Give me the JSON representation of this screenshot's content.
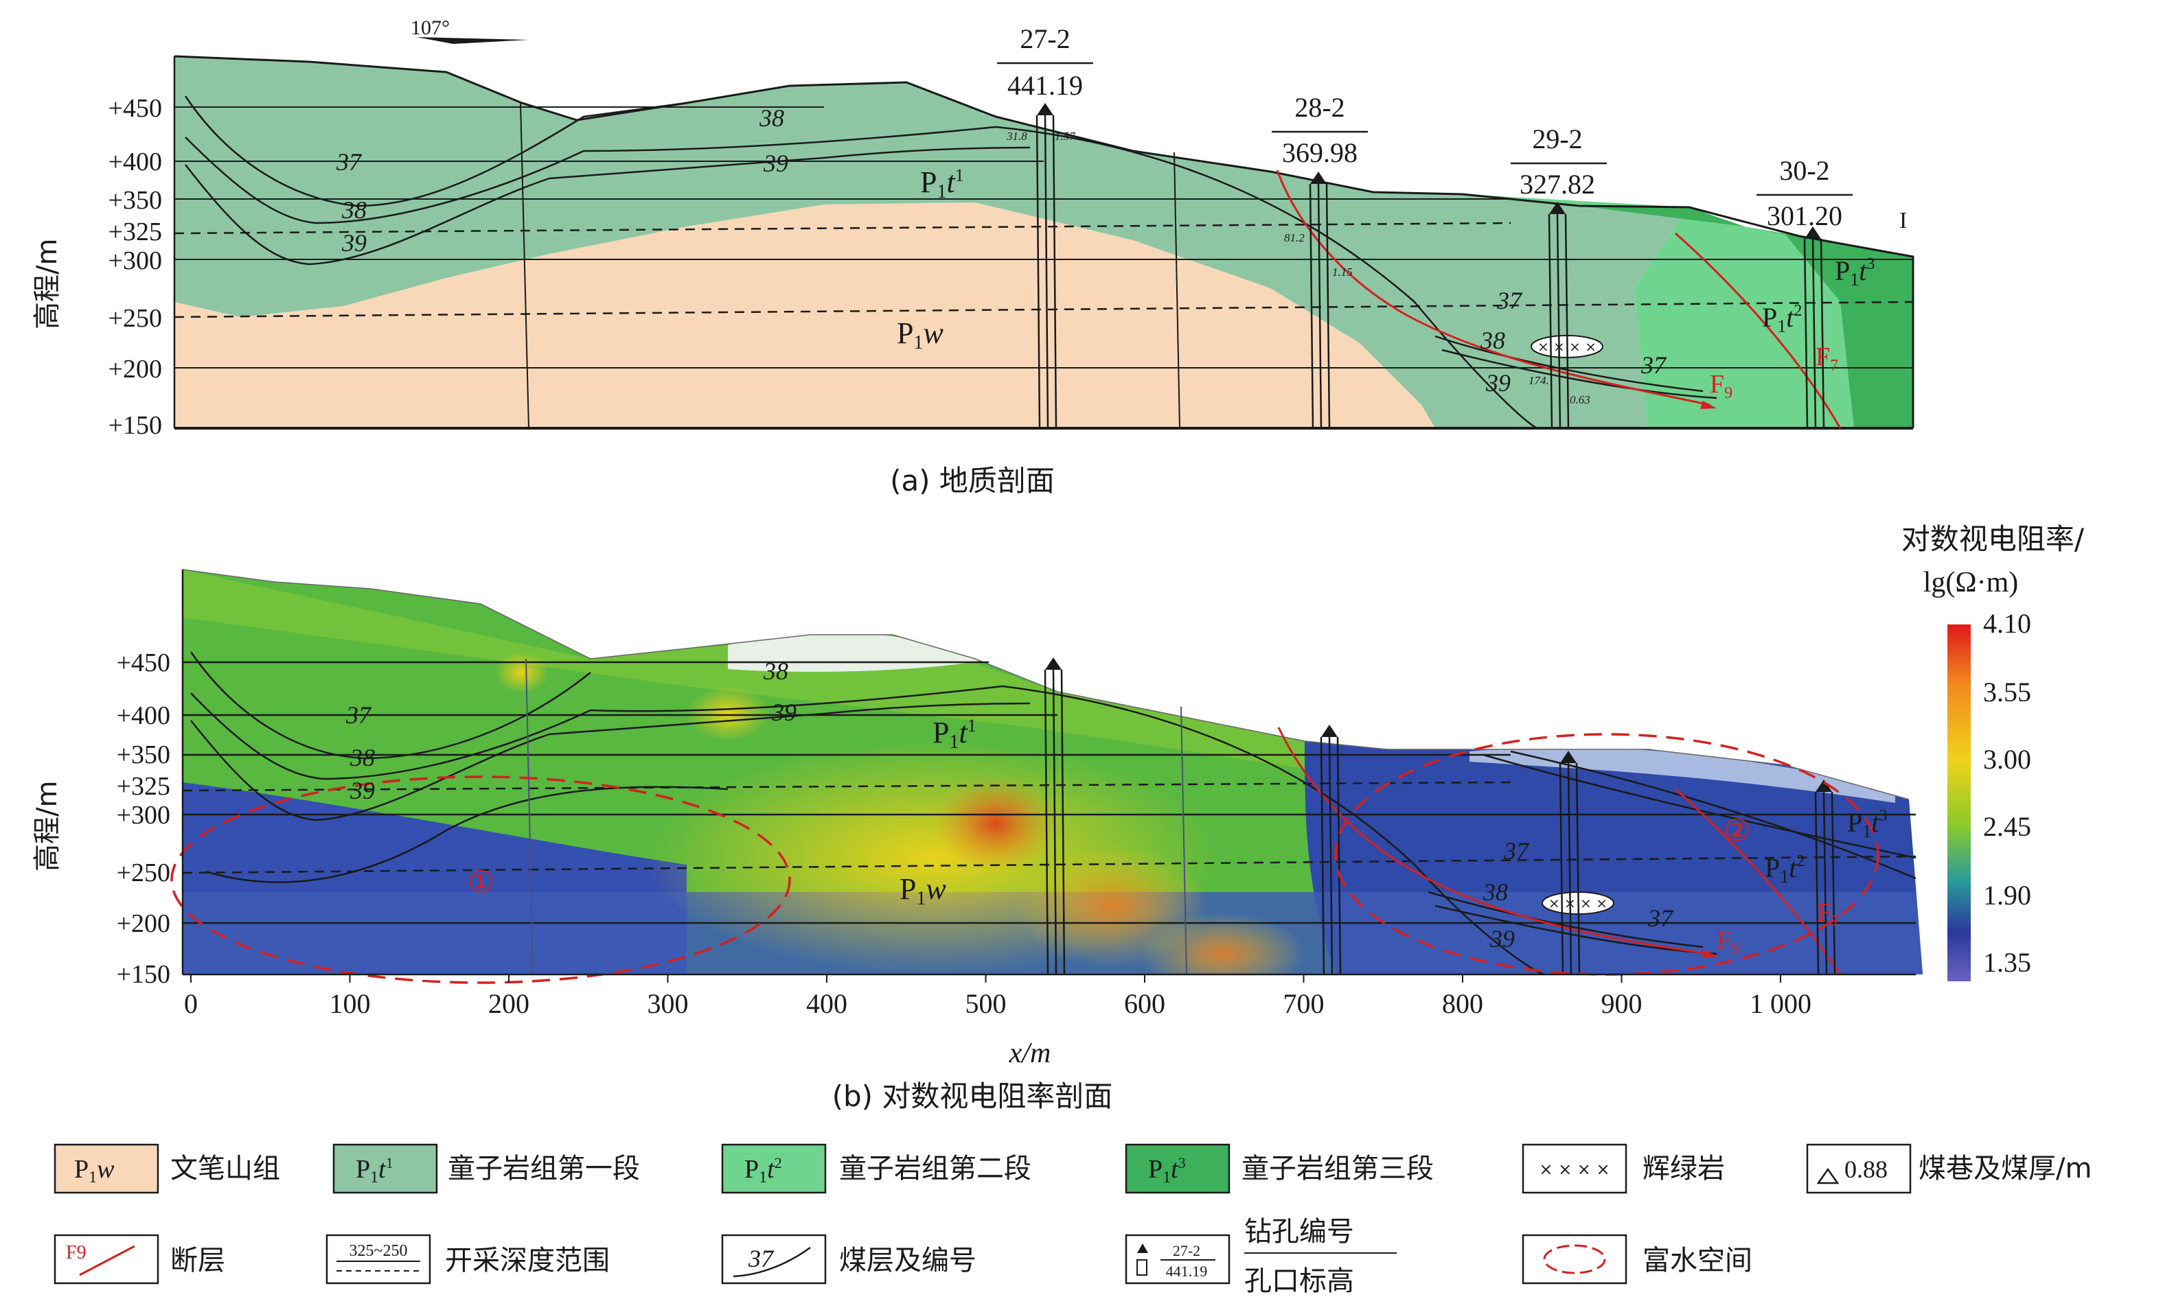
{
  "north_arrow": "107°",
  "panel_a": {
    "caption": "(a) 地质剖面",
    "ylabel": "高程/m",
    "y_ticks": [
      "+450",
      "+400",
      "+350",
      "+325",
      "+300",
      "+250",
      "+200",
      "+150"
    ],
    "boreholes": [
      {
        "id": "27-2",
        "elev": "441.19"
      },
      {
        "id": "28-2",
        "elev": "369.98"
      },
      {
        "id": "29-2",
        "elev": "327.82"
      },
      {
        "id": "30-2",
        "elev": "301.20"
      }
    ],
    "seam_labels": [
      "37",
      "38",
      "39",
      "38",
      "39",
      "37",
      "38",
      "37",
      "39"
    ],
    "faults": [
      "F9",
      "F7"
    ],
    "small_labels": [
      "31.8",
      "1.57",
      "81.2",
      "1.15",
      "174.",
      "0.63"
    ],
    "end_mark": "I"
  },
  "panel_b": {
    "caption": "(b) 对数视电阻率剖面",
    "ylabel": "高程/m",
    "xlabel": "x/m",
    "x_ticks": [
      "0",
      "100",
      "200",
      "300",
      "400",
      "500",
      "600",
      "700",
      "800",
      "900",
      "1 000"
    ],
    "y_ticks": [
      "+450",
      "+400",
      "+350",
      "+325",
      "+300",
      "+250",
      "+200",
      "+150"
    ],
    "water_zones": [
      "①",
      "②"
    ],
    "faults": [
      "F9",
      "F7"
    ]
  },
  "colorbar": {
    "title_line1": "对数视电阻率/",
    "title_line2": "lg(Ω·m)",
    "values": [
      "4.10",
      "3.55",
      "3.00",
      "2.45",
      "1.90",
      "1.35"
    ],
    "colors": [
      "#e01a1a",
      "#f28a1e",
      "#f0d21a",
      "#8ccb2a",
      "#2a9a9a",
      "#2a3a9c",
      "#6a62c0"
    ]
  },
  "formations": {
    "P1w": {
      "color": "#f8d8b8"
    },
    "P1t1": {
      "color": "#8ec6a4"
    },
    "P1t2": {
      "color": "#6fd48e"
    },
    "P1t3": {
      "color": "#3cb05a"
    }
  },
  "legend": [
    {
      "key": "P1w",
      "label": "文笔山组"
    },
    {
      "key": "P1t1",
      "label": "童子岩组第一段"
    },
    {
      "key": "P1t2",
      "label": "童子岩组第二段"
    },
    {
      "key": "P1t3",
      "label": "童子岩组第三段"
    },
    {
      "key": "diabase",
      "label": "辉绿岩"
    },
    {
      "key": "roadway",
      "label": "煤巷及煤厚/m",
      "sample": "0.88"
    },
    {
      "key": "fault",
      "label": "断层",
      "sample": "F9"
    },
    {
      "key": "depth",
      "label": "开采深度范围",
      "sample": "325~250"
    },
    {
      "key": "seam",
      "label": "煤层及编号",
      "sample": "37"
    },
    {
      "key": "borehole",
      "label_line1": "钻孔编号",
      "label_line2": "孔口标高",
      "sample_id": "27-2",
      "sample_elev": "441.19"
    },
    {
      "key": "water",
      "label": "富水空间"
    }
  ]
}
